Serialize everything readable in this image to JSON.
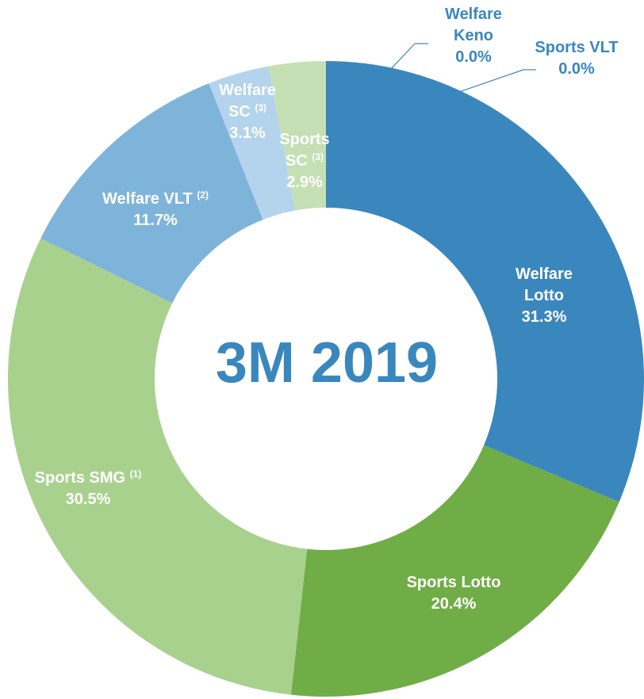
{
  "chart_data": {
    "type": "donut",
    "center_text": "3M 2019",
    "series": [
      {
        "name": "Welfare Lotto",
        "color": "#3a87be",
        "value": 31.3,
        "value_label": "31.3%"
      },
      {
        "name": "Sports Lotto",
        "color": "#70ad47",
        "value": 20.4,
        "value_label": "20.4%"
      },
      {
        "name": "Sports SMG",
        "note": "(1)",
        "color": "#a9d18e",
        "value": 30.5,
        "value_label": "30.5%"
      },
      {
        "name": "Welfare VLT",
        "note": "(2)",
        "color": "#7fb4da",
        "value": 11.7,
        "value_label": "11.7%"
      },
      {
        "name": "Welfare SC",
        "note": "(3)",
        "color": "#b4d3ec",
        "value": 3.1,
        "value_label": "3.1%"
      },
      {
        "name": "Sports SC",
        "note": "(3)",
        "color": "#c5e0b4",
        "value": 2.9,
        "value_label": "2.9%"
      },
      {
        "name": "Welfare Keno",
        "color": "#ed7d31",
        "value": 0.0,
        "value_label": "0.0%"
      },
      {
        "name": "Sports VLT",
        "color": "#f4b183",
        "value": 0.0,
        "value_label": "0.0%"
      }
    ]
  }
}
